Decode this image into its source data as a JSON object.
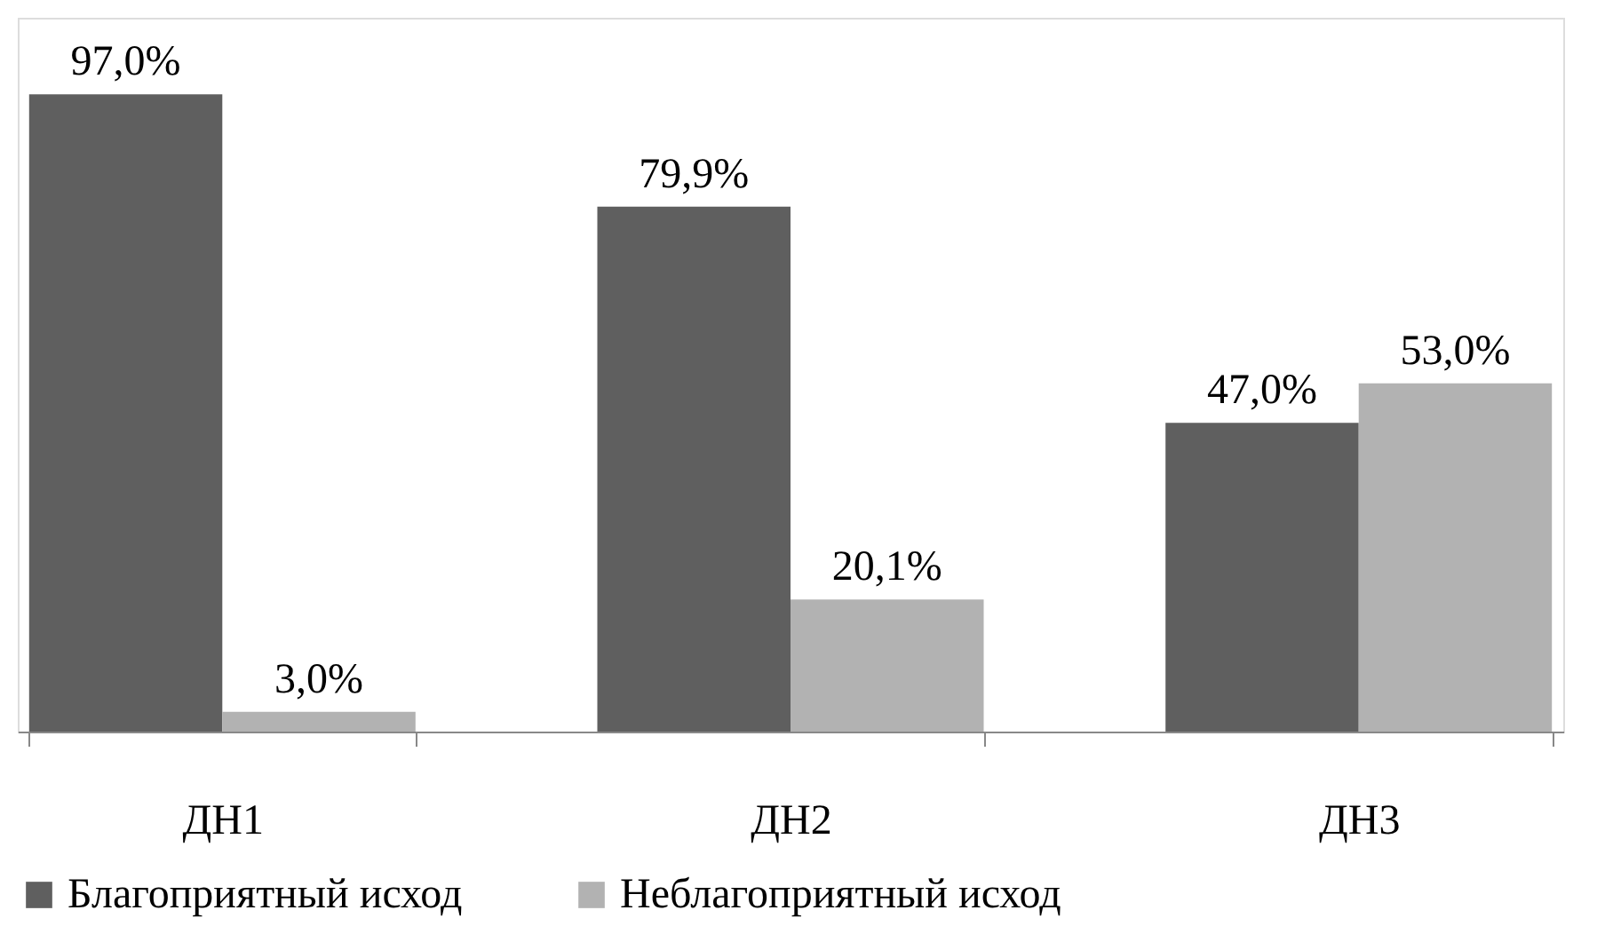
{
  "chart_data": {
    "type": "bar",
    "categories": [
      "ДН1",
      "ДН2",
      "ДН3"
    ],
    "series": [
      {
        "name": "Благоприятный исход",
        "color": "#5f5f5f",
        "values": [
          97.0,
          79.9,
          47.0
        ],
        "value_labels": [
          "97,0%",
          "79,9%",
          "47,0%"
        ]
      },
      {
        "name": "Неблагоприятный исход",
        "color": "#b2b2b2",
        "values": [
          3.0,
          20.1,
          53.0
        ],
        "value_labels": [
          "3,0%",
          "20,1%",
          "53,0%"
        ]
      }
    ],
    "legend": "bottom"
  }
}
